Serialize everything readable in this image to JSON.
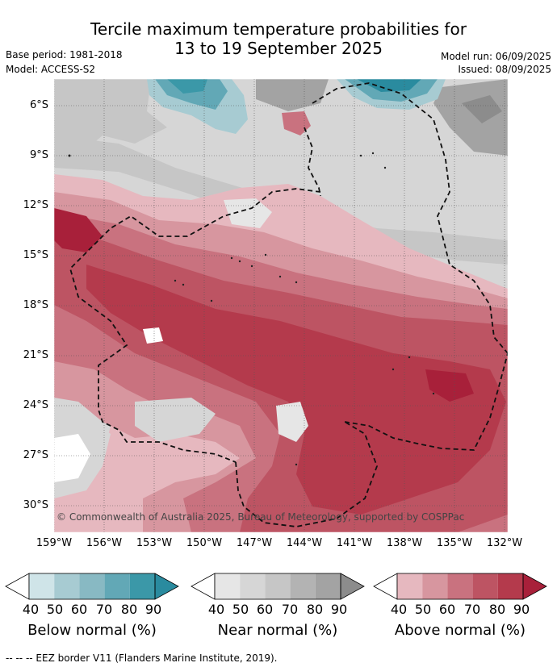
{
  "title": {
    "line1": "Tercile maximum temperature probabilities for",
    "line2": "13 to 19 September 2025"
  },
  "meta": {
    "base_period": "Base period: 1981-2018",
    "model": "Model: ACCESS-S2",
    "model_run": "Model run: 06/09/2025",
    "issued": "Issued: 08/09/2025"
  },
  "map": {
    "y_ticks": [
      "6°S",
      "9°S",
      "12°S",
      "15°S",
      "18°S",
      "21°S",
      "24°S",
      "27°S",
      "30°S"
    ],
    "x_ticks": [
      "159°W",
      "156°W",
      "153°W",
      "150°W",
      "147°W",
      "144°W",
      "141°W",
      "138°W",
      "135°W",
      "132°W"
    ],
    "copyright": "© Commonwealth of Australia 2025, Bureau of Meteorology, supported by COSPPac"
  },
  "colorbars": [
    {
      "label": "Below normal (%)",
      "ticks": [
        "40",
        "50",
        "60",
        "70",
        "80",
        "90"
      ],
      "colors": [
        "#ffffff",
        "#cfe4e8",
        "#a7cbd2",
        "#88b9c3",
        "#62a8b6",
        "#3b98a8",
        "#2a8b9f"
      ]
    },
    {
      "label": "Near normal (%)",
      "ticks": [
        "40",
        "50",
        "60",
        "70",
        "80",
        "90"
      ],
      "colors": [
        "#ffffff",
        "#e6e6e6",
        "#d6d6d6",
        "#c6c6c6",
        "#b3b3b3",
        "#a3a3a3",
        "#8c8c8c"
      ]
    },
    {
      "label": "Above normal (%)",
      "ticks": [
        "40",
        "50",
        "60",
        "70",
        "80",
        "90"
      ],
      "colors": [
        "#ffffff",
        "#e6b8bf",
        "#d7969f",
        "#c9727f",
        "#bd5463",
        "#b43a4c",
        "#a8203a"
      ]
    }
  ],
  "footer": "-- -- -- EEZ border V11 (Flanders Marine Institute, 2019)."
}
